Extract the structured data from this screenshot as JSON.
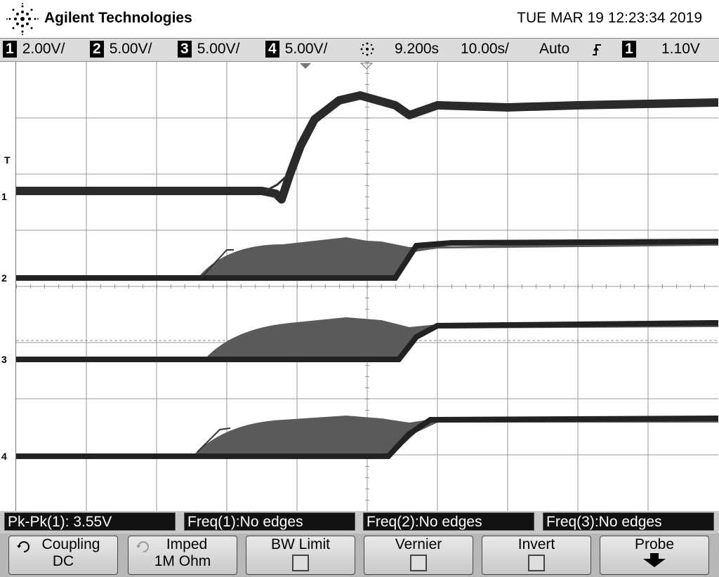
{
  "brand": "Agilent Technologies",
  "datetime": "TUE MAR 19 12:23:34 2019",
  "status": {
    "ch1": {
      "num": "1",
      "scale": "2.00V/"
    },
    "ch2": {
      "num": "2",
      "scale": "5.00V/"
    },
    "ch3": {
      "num": "3",
      "scale": "5.00V/"
    },
    "ch4": {
      "num": "4",
      "scale": "5.00V/"
    },
    "delay": "9.200s",
    "timebase": "10.00s/",
    "mode": "Auto",
    "slope_icon": "rising-edge-icon",
    "trig_source": "1",
    "trig_level": "1.10V"
  },
  "markers": {
    "trigger": "T",
    "ch1": "1",
    "ch2": "2",
    "ch3": "3",
    "ch4": "4"
  },
  "measurements": [
    {
      "label": "Pk-Pk(1): 3.55V"
    },
    {
      "label": "Freq(1):No edges"
    },
    {
      "label": "Freq(2):No edges"
    },
    {
      "label": "Freq(3):No edges"
    }
  ],
  "softkeys": [
    {
      "label": "Coupling",
      "value": "DC",
      "icon": "rotate-knob-icon"
    },
    {
      "label": "Imped",
      "value": "1M Ohm",
      "icon": "rotate-knob-icon"
    },
    {
      "label": "BW Limit",
      "value": "",
      "icon": "checkbox-icon"
    },
    {
      "label": "Vernier",
      "value": "",
      "icon": "checkbox-icon"
    },
    {
      "label": "Invert",
      "value": "",
      "icon": "checkbox-icon"
    },
    {
      "label": "Probe",
      "value": "",
      "icon": "arrow-down-icon"
    }
  ],
  "colors": {
    "trace": "#1a1a1a",
    "grid": "#9a9a9a",
    "statusbar": "#dcdcdc"
  }
}
